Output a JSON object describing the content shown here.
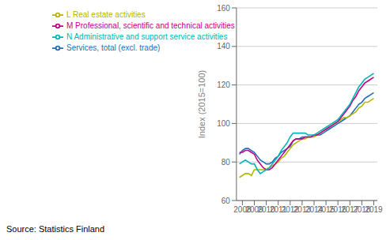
{
  "chart_data": {
    "type": "line",
    "ylabel": "Index (2015=100)",
    "source": "Source: Statistics Finland",
    "x": [
      2007.75,
      2008.0,
      2008.25,
      2008.5,
      2008.75,
      2009.0,
      2009.25,
      2009.5,
      2009.75,
      2010.0,
      2010.25,
      2010.5,
      2010.75,
      2011.0,
      2011.25,
      2011.5,
      2011.75,
      2012.0,
      2012.25,
      2012.5,
      2012.75,
      2013.0,
      2013.25,
      2013.5,
      2013.75,
      2014.0,
      2014.25,
      2014.5,
      2014.75,
      2015.0,
      2015.25,
      2015.5,
      2015.75,
      2016.0,
      2016.25,
      2016.5,
      2016.75,
      2017.0,
      2017.25,
      2017.5,
      2017.75,
      2018.0,
      2018.25,
      2018.5,
      2018.75,
      2019.0
    ],
    "series": [
      {
        "name": "Services, total (excl. trade)",
        "color": "#1f6eb5",
        "values": [
          84,
          86,
          87,
          87,
          86,
          85,
          83,
          81,
          80,
          79,
          79,
          80,
          82,
          83,
          85,
          86,
          87,
          88,
          91,
          92,
          92,
          93,
          93,
          93,
          93,
          94,
          94,
          94,
          95,
          96,
          97,
          98,
          99,
          100,
          101,
          102,
          103,
          104,
          106,
          108,
          110,
          111,
          113,
          114,
          115,
          116
        ]
      },
      {
        "name": "L Real estate activities",
        "color": "#b5b500",
        "values": [
          72,
          73,
          74,
          74,
          73,
          76,
          76,
          76,
          76,
          76,
          77,
          78,
          79,
          80,
          82,
          83,
          85,
          87,
          89,
          90,
          91,
          92,
          92,
          93,
          93,
          93,
          94,
          95,
          96,
          97,
          98,
          99,
          100,
          101,
          102,
          103,
          103,
          104,
          105,
          106,
          108,
          109,
          111,
          111,
          112,
          113
        ]
      },
      {
        "name": "M Professional, scientific and technical activities",
        "color": "#c0008a",
        "values": [
          85,
          85,
          86,
          86,
          85,
          84,
          81,
          79,
          77,
          76,
          76,
          77,
          79,
          81,
          83,
          85,
          87,
          89,
          91,
          92,
          92,
          92,
          93,
          93,
          93,
          94,
          94,
          95,
          96,
          97,
          98,
          99,
          100,
          101,
          103,
          105,
          107,
          109,
          112,
          114,
          117,
          119,
          121,
          122,
          123,
          124
        ]
      },
      {
        "name": "N Administrative and support service activities",
        "color": "#00b5b5",
        "values": [
          79,
          80,
          81,
          80,
          79,
          79,
          76,
          74,
          75,
          76,
          77,
          79,
          81,
          83,
          86,
          88,
          90,
          93,
          95,
          95,
          95,
          95,
          95,
          94,
          94,
          94,
          95,
          96,
          97,
          98,
          99,
          100,
          101,
          102,
          104,
          106,
          108,
          110,
          113,
          116,
          119,
          121,
          123,
          124,
          125,
          126
        ]
      }
    ],
    "xlim": [
      2007.5,
      2019.3
    ],
    "xticks": [
      2008,
      2009,
      2010,
      2011,
      2012,
      2013,
      2014,
      2015,
      2016,
      2017,
      2018,
      2019
    ],
    "ylim": [
      60,
      160
    ],
    "yticks": [
      60,
      80,
      100,
      120,
      140,
      160
    ],
    "grid": "y",
    "legend": "upper left"
  }
}
